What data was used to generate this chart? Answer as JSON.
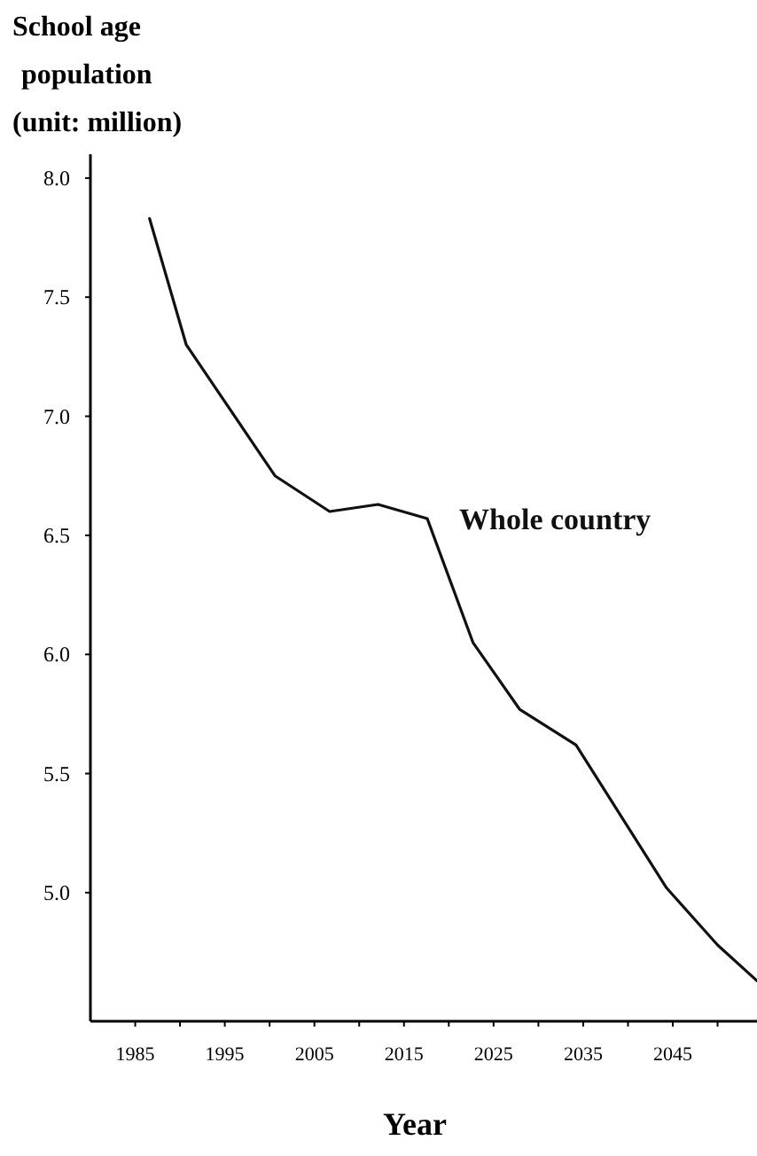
{
  "chart_data": {
    "type": "line",
    "ylabel": "School age\npopulation\n(unit: million)",
    "xlabel": "Year",
    "x": [
      1986.6,
      1990.7,
      2000.6,
      2006.7,
      2012.1,
      2017.6,
      2022.7,
      2027.9,
      2034.2,
      2044.3,
      2050.0,
      2054.4
    ],
    "series": [
      {
        "name": "Whole country",
        "color": "#111111",
        "values": [
          7.83,
          7.3,
          6.75,
          6.6,
          6.63,
          6.57,
          6.05,
          5.77,
          5.62,
          5.02,
          4.78,
          4.63
        ]
      }
    ],
    "xlim": [
      1980,
      2054.4
    ],
    "ylim": [
      4.46,
      8.1
    ],
    "xticks": [
      1985,
      {
        "value": 1990,
        "label": null
      },
      1995,
      {
        "value": 2000,
        "label": null
      },
      2005,
      {
        "value": 2010,
        "label": null
      },
      2015,
      {
        "value": 2020,
        "label": null
      },
      2025,
      {
        "value": 2030,
        "label": null
      },
      2035,
      {
        "value": 2040,
        "label": null
      },
      2045,
      {
        "value": 2050,
        "label": null
      }
    ],
    "yticks": [
      {
        "value": 8,
        "label": "8.0"
      },
      {
        "value": 7.5,
        "label": "7.5"
      },
      {
        "value": 7,
        "label": "7.0"
      },
      {
        "value": 6.5,
        "label": "6.5"
      },
      {
        "value": 6,
        "label": "6.0"
      },
      {
        "value": 5.5,
        "label": "5.5"
      },
      {
        "value": 5,
        "label": "5.0"
      }
    ],
    "grid": false,
    "marker": "none",
    "line_style": "solid"
  }
}
